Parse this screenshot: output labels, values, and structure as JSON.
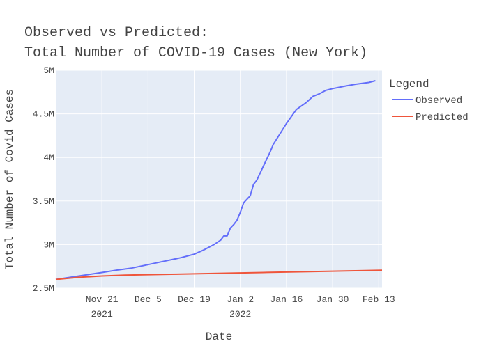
{
  "chart_data": {
    "type": "line",
    "title": [
      "Observed vs Predicted:",
      "Total Number of COVID-19 Cases (New York)"
    ],
    "xlabel": "Date",
    "ylabel": "Total Number of Covid Cases",
    "x_range": [
      "2021-11-07",
      "2022-02-14"
    ],
    "ylim": [
      2500000,
      5000000
    ],
    "y_ticks": [
      {
        "value": 2500000,
        "label": "2.5M"
      },
      {
        "value": 3000000,
        "label": "3M"
      },
      {
        "value": 3500000,
        "label": "3.5M"
      },
      {
        "value": 4000000,
        "label": "4M"
      },
      {
        "value": 4500000,
        "label": "4.5M"
      },
      {
        "value": 5000000,
        "label": "5M"
      }
    ],
    "x_ticks": [
      {
        "date": "2021-11-21",
        "label": "Nov 21",
        "year": "2021"
      },
      {
        "date": "2021-12-05",
        "label": "Dec 5",
        "year": ""
      },
      {
        "date": "2021-12-19",
        "label": "Dec 19",
        "year": ""
      },
      {
        "date": "2022-01-02",
        "label": "Jan 2",
        "year": "2022"
      },
      {
        "date": "2022-01-16",
        "label": "Jan 16",
        "year": ""
      },
      {
        "date": "2022-01-30",
        "label": "Jan 30",
        "year": ""
      },
      {
        "date": "2022-02-13",
        "label": "Feb 13",
        "year": ""
      }
    ],
    "grid": true,
    "legend": {
      "title": "Legend",
      "position": "right"
    },
    "series": [
      {
        "name": "Observed",
        "color": "#636efa",
        "points": [
          [
            "2021-11-07",
            2600000
          ],
          [
            "2021-11-14",
            2640000
          ],
          [
            "2021-11-21",
            2680000
          ],
          [
            "2021-11-26",
            2710000
          ],
          [
            "2021-11-30",
            2730000
          ],
          [
            "2021-12-05",
            2770000
          ],
          [
            "2021-12-10",
            2810000
          ],
          [
            "2021-12-15",
            2850000
          ],
          [
            "2021-12-19",
            2890000
          ],
          [
            "2021-12-22",
            2940000
          ],
          [
            "2021-12-25",
            3000000
          ],
          [
            "2021-12-27",
            3050000
          ],
          [
            "2021-12-28",
            3100000
          ],
          [
            "2021-12-29",
            3100000
          ],
          [
            "2021-12-30",
            3190000
          ],
          [
            "2021-12-31",
            3230000
          ],
          [
            "2022-01-01",
            3280000
          ],
          [
            "2022-01-02",
            3370000
          ],
          [
            "2022-01-03",
            3480000
          ],
          [
            "2022-01-04",
            3520000
          ],
          [
            "2022-01-05",
            3560000
          ],
          [
            "2022-01-06",
            3690000
          ],
          [
            "2022-01-07",
            3740000
          ],
          [
            "2022-01-09",
            3900000
          ],
          [
            "2022-01-11",
            4060000
          ],
          [
            "2022-01-12",
            4150000
          ],
          [
            "2022-01-14",
            4270000
          ],
          [
            "2022-01-16",
            4390000
          ],
          [
            "2022-01-19",
            4550000
          ],
          [
            "2022-01-22",
            4630000
          ],
          [
            "2022-01-24",
            4700000
          ],
          [
            "2022-01-26",
            4730000
          ],
          [
            "2022-01-28",
            4770000
          ],
          [
            "2022-01-30",
            4790000
          ],
          [
            "2022-02-03",
            4820000
          ],
          [
            "2022-02-06",
            4840000
          ],
          [
            "2022-02-10",
            4860000
          ],
          [
            "2022-02-12",
            4880000
          ]
        ]
      },
      {
        "name": "Predicted",
        "color": "#ef553b",
        "points": [
          [
            "2021-11-07",
            2600000
          ],
          [
            "2021-11-14",
            2625000
          ],
          [
            "2021-11-21",
            2640000
          ],
          [
            "2021-11-28",
            2650000
          ],
          [
            "2021-12-12",
            2660000
          ],
          [
            "2021-12-26",
            2670000
          ],
          [
            "2022-01-09",
            2680000
          ],
          [
            "2022-01-23",
            2690000
          ],
          [
            "2022-02-06",
            2700000
          ],
          [
            "2022-02-14",
            2705000
          ]
        ]
      }
    ]
  }
}
